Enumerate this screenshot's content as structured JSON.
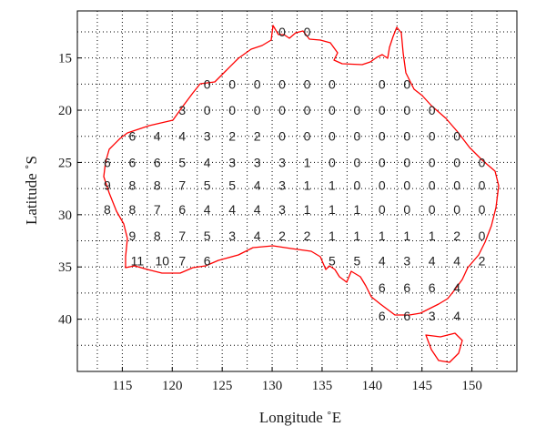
{
  "map": {
    "x_axis": {
      "label": "Longitude ˚E",
      "ticks": [
        "115",
        "120",
        "125",
        "130",
        "135",
        "140",
        "145",
        "150"
      ],
      "tick_values": [
        115,
        120,
        125,
        130,
        135,
        140,
        145,
        150
      ],
      "range": [
        110.5,
        154.5
      ]
    },
    "y_axis": {
      "label": "Latitude ˚S",
      "ticks": [
        "15",
        "20",
        "25",
        "30",
        "35",
        "40"
      ],
      "tick_values": [
        15,
        20,
        25,
        30,
        35,
        40
      ],
      "range": [
        10.5,
        45
      ]
    },
    "grid": "dotted",
    "coastline_color": "#ff0000",
    "grid_labels": [
      {
        "lon": 131,
        "lat": 12.5,
        "text": "0"
      },
      {
        "lon": 133.5,
        "lat": 12.5,
        "text": "0"
      },
      {
        "lon": 123.5,
        "lat": 17.5,
        "text": "0"
      },
      {
        "lon": 126,
        "lat": 17.5,
        "text": "0"
      },
      {
        "lon": 128.5,
        "lat": 17.5,
        "text": "0"
      },
      {
        "lon": 131,
        "lat": 17.5,
        "text": "0"
      },
      {
        "lon": 133.5,
        "lat": 17.5,
        "text": "0"
      },
      {
        "lon": 136,
        "lat": 17.5,
        "text": "0"
      },
      {
        "lon": 141,
        "lat": 17.5,
        "text": "0"
      },
      {
        "lon": 143.5,
        "lat": 17.5,
        "text": "0"
      },
      {
        "lon": 121,
        "lat": 20,
        "text": "3"
      },
      {
        "lon": 123.5,
        "lat": 20,
        "text": "0"
      },
      {
        "lon": 126,
        "lat": 20,
        "text": "0"
      },
      {
        "lon": 128.5,
        "lat": 20,
        "text": "0"
      },
      {
        "lon": 131,
        "lat": 20,
        "text": "0"
      },
      {
        "lon": 133.5,
        "lat": 20,
        "text": "0"
      },
      {
        "lon": 136,
        "lat": 20,
        "text": "0"
      },
      {
        "lon": 138.5,
        "lat": 20,
        "text": "0"
      },
      {
        "lon": 141,
        "lat": 20,
        "text": "0"
      },
      {
        "lon": 143.5,
        "lat": 20,
        "text": "0"
      },
      {
        "lon": 146,
        "lat": 20,
        "text": "0"
      },
      {
        "lon": 116,
        "lat": 22.5,
        "text": "6"
      },
      {
        "lon": 118.5,
        "lat": 22.5,
        "text": "4"
      },
      {
        "lon": 121,
        "lat": 22.5,
        "text": "4"
      },
      {
        "lon": 123.5,
        "lat": 22.5,
        "text": "3"
      },
      {
        "lon": 126,
        "lat": 22.5,
        "text": "2"
      },
      {
        "lon": 128.5,
        "lat": 22.5,
        "text": "2"
      },
      {
        "lon": 131,
        "lat": 22.5,
        "text": "0"
      },
      {
        "lon": 133.5,
        "lat": 22.5,
        "text": "0"
      },
      {
        "lon": 136,
        "lat": 22.5,
        "text": "0"
      },
      {
        "lon": 138.5,
        "lat": 22.5,
        "text": "0"
      },
      {
        "lon": 141,
        "lat": 22.5,
        "text": "0"
      },
      {
        "lon": 143.5,
        "lat": 22.5,
        "text": "0"
      },
      {
        "lon": 146,
        "lat": 22.5,
        "text": "0"
      },
      {
        "lon": 148.5,
        "lat": 22.5,
        "text": "0"
      },
      {
        "lon": 113.5,
        "lat": 25,
        "text": "6"
      },
      {
        "lon": 116,
        "lat": 25,
        "text": "6"
      },
      {
        "lon": 118.5,
        "lat": 25,
        "text": "6"
      },
      {
        "lon": 121,
        "lat": 25,
        "text": "5"
      },
      {
        "lon": 123.5,
        "lat": 25,
        "text": "4"
      },
      {
        "lon": 126,
        "lat": 25,
        "text": "3"
      },
      {
        "lon": 128.5,
        "lat": 25,
        "text": "3"
      },
      {
        "lon": 131,
        "lat": 25,
        "text": "3"
      },
      {
        "lon": 133.5,
        "lat": 25,
        "text": "1"
      },
      {
        "lon": 136,
        "lat": 25,
        "text": "0"
      },
      {
        "lon": 138.5,
        "lat": 25,
        "text": "0"
      },
      {
        "lon": 141,
        "lat": 25,
        "text": "0"
      },
      {
        "lon": 143.5,
        "lat": 25,
        "text": "0"
      },
      {
        "lon": 146,
        "lat": 25,
        "text": "0"
      },
      {
        "lon": 148.5,
        "lat": 25,
        "text": "0"
      },
      {
        "lon": 151,
        "lat": 25,
        "text": "0"
      },
      {
        "lon": 113.5,
        "lat": 27.2,
        "text": "9"
      },
      {
        "lon": 116,
        "lat": 27.2,
        "text": "8"
      },
      {
        "lon": 118.5,
        "lat": 27.2,
        "text": "8"
      },
      {
        "lon": 121,
        "lat": 27.2,
        "text": "7"
      },
      {
        "lon": 123.5,
        "lat": 27.2,
        "text": "5"
      },
      {
        "lon": 126,
        "lat": 27.2,
        "text": "5"
      },
      {
        "lon": 128.5,
        "lat": 27.2,
        "text": "4"
      },
      {
        "lon": 131,
        "lat": 27.2,
        "text": "3"
      },
      {
        "lon": 133.5,
        "lat": 27.2,
        "text": "1"
      },
      {
        "lon": 136,
        "lat": 27.2,
        "text": "1"
      },
      {
        "lon": 138.5,
        "lat": 27.2,
        "text": "0"
      },
      {
        "lon": 141,
        "lat": 27.2,
        "text": "0"
      },
      {
        "lon": 143.5,
        "lat": 27.2,
        "text": "0"
      },
      {
        "lon": 146,
        "lat": 27.2,
        "text": "0"
      },
      {
        "lon": 148.5,
        "lat": 27.2,
        "text": "0"
      },
      {
        "lon": 151,
        "lat": 27.2,
        "text": "0"
      },
      {
        "lon": 113.5,
        "lat": 29.5,
        "text": "8"
      },
      {
        "lon": 116,
        "lat": 29.5,
        "text": "8"
      },
      {
        "lon": 118.5,
        "lat": 29.5,
        "text": "7"
      },
      {
        "lon": 121,
        "lat": 29.5,
        "text": "6"
      },
      {
        "lon": 123.5,
        "lat": 29.5,
        "text": "4"
      },
      {
        "lon": 126,
        "lat": 29.5,
        "text": "4"
      },
      {
        "lon": 128.5,
        "lat": 29.5,
        "text": "4"
      },
      {
        "lon": 131,
        "lat": 29.5,
        "text": "3"
      },
      {
        "lon": 133.5,
        "lat": 29.5,
        "text": "1"
      },
      {
        "lon": 136,
        "lat": 29.5,
        "text": "1"
      },
      {
        "lon": 138.5,
        "lat": 29.5,
        "text": "1"
      },
      {
        "lon": 141,
        "lat": 29.5,
        "text": "0"
      },
      {
        "lon": 143.5,
        "lat": 29.5,
        "text": "0"
      },
      {
        "lon": 146,
        "lat": 29.5,
        "text": "0"
      },
      {
        "lon": 148.5,
        "lat": 29.5,
        "text": "0"
      },
      {
        "lon": 151,
        "lat": 29.5,
        "text": "0"
      },
      {
        "lon": 116,
        "lat": 32,
        "text": "9"
      },
      {
        "lon": 118.5,
        "lat": 32,
        "text": "8"
      },
      {
        "lon": 121,
        "lat": 32,
        "text": "7"
      },
      {
        "lon": 123.5,
        "lat": 32,
        "text": "5"
      },
      {
        "lon": 126,
        "lat": 32,
        "text": "3"
      },
      {
        "lon": 128.5,
        "lat": 32,
        "text": "4"
      },
      {
        "lon": 131,
        "lat": 32,
        "text": "2"
      },
      {
        "lon": 133.5,
        "lat": 32,
        "text": "2"
      },
      {
        "lon": 136,
        "lat": 32,
        "text": "1"
      },
      {
        "lon": 138.5,
        "lat": 32,
        "text": "1"
      },
      {
        "lon": 141,
        "lat": 32,
        "text": "1"
      },
      {
        "lon": 143.5,
        "lat": 32,
        "text": "1"
      },
      {
        "lon": 146,
        "lat": 32,
        "text": "1"
      },
      {
        "lon": 148.5,
        "lat": 32,
        "text": "2"
      },
      {
        "lon": 151,
        "lat": 32,
        "text": "0"
      },
      {
        "lon": 116.5,
        "lat": 34.4,
        "text": "11"
      },
      {
        "lon": 119,
        "lat": 34.4,
        "text": "10"
      },
      {
        "lon": 121,
        "lat": 34.4,
        "text": "7"
      },
      {
        "lon": 123.5,
        "lat": 34.4,
        "text": "6"
      },
      {
        "lon": 136,
        "lat": 34.4,
        "text": "5"
      },
      {
        "lon": 138.5,
        "lat": 34.4,
        "text": "5"
      },
      {
        "lon": 141,
        "lat": 34.4,
        "text": "4"
      },
      {
        "lon": 143.5,
        "lat": 34.4,
        "text": "3"
      },
      {
        "lon": 146,
        "lat": 34.4,
        "text": "4"
      },
      {
        "lon": 148.5,
        "lat": 34.4,
        "text": "4"
      },
      {
        "lon": 151,
        "lat": 34.4,
        "text": "2"
      },
      {
        "lon": 141,
        "lat": 37,
        "text": "6"
      },
      {
        "lon": 143.5,
        "lat": 37,
        "text": "6"
      },
      {
        "lon": 146,
        "lat": 37,
        "text": "6"
      },
      {
        "lon": 148.5,
        "lat": 37,
        "text": "4"
      },
      {
        "lon": 141,
        "lat": 39.7,
        "text": "6"
      },
      {
        "lon": 143.5,
        "lat": 39.7,
        "text": "6"
      },
      {
        "lon": 146,
        "lat": 39.7,
        "text": "3"
      },
      {
        "lon": 148.5,
        "lat": 39.7,
        "text": "4"
      }
    ]
  }
}
